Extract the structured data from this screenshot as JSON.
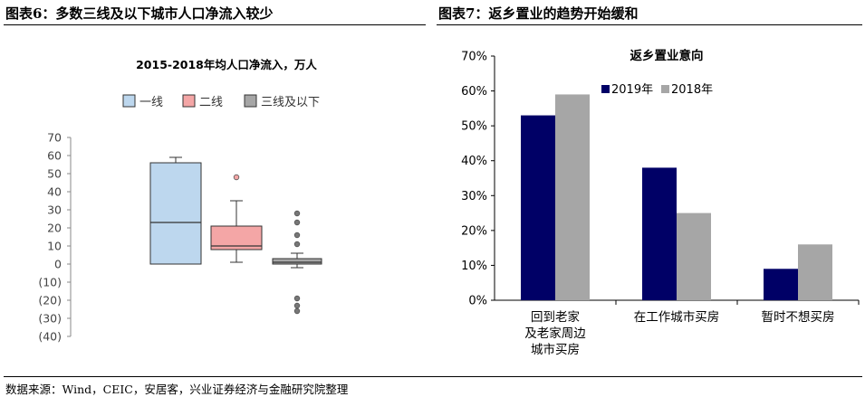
{
  "figure6": {
    "title": "图表6：多数三线及以下城市人口净流入较少"
  },
  "figure7": {
    "title": "图表7：返乡置业的趋势开始缓和"
  },
  "source": "数据来源：Wind，CEIC，安居客，兴业证券经济与金融研究院整理",
  "chart_data": [
    {
      "type": "box",
      "title": "2015-2018年均人口净流入，万人",
      "legend_position": "top",
      "categories": [
        "一线",
        "二线",
        "三线及以下"
      ],
      "series_colors": [
        "#bdd7ee",
        "#f4a6a6",
        "#a6a6a6"
      ],
      "yticks": [
        "70",
        "60",
        "50",
        "40",
        "30",
        "20",
        "10",
        "0",
        "(10)",
        "(20)",
        "(30)",
        "(40)"
      ],
      "ylim": [
        -40,
        70
      ],
      "boxes": [
        {
          "name": "一线",
          "min": 0,
          "q1": 0,
          "median": 23,
          "q3": 56,
          "max": 59,
          "outliers": []
        },
        {
          "name": "二线",
          "min": 1,
          "q1": 8,
          "median": 10,
          "q3": 21,
          "max": 35,
          "outliers": [
            48
          ]
        },
        {
          "name": "三线及以下",
          "min": -2,
          "q1": 0,
          "median": 1,
          "q3": 3,
          "max": 6,
          "outliers": [
            28,
            23,
            16,
            11,
            -19,
            -23,
            -26
          ]
        }
      ],
      "grid": false
    },
    {
      "type": "bar",
      "title": "返乡置业意向",
      "legend_position": "top-right",
      "categories": [
        "回到老家\n及老家周边\n城市买房",
        "在工作城市买房",
        "暂时不想买房"
      ],
      "yticks": [
        "70%",
        "60%",
        "50%",
        "40%",
        "30%",
        "20%",
        "10%",
        "0%"
      ],
      "ylim": [
        0,
        0.7
      ],
      "series": [
        {
          "name": "2019年",
          "color": "#000066",
          "values": [
            0.53,
            0.38,
            0.09
          ]
        },
        {
          "name": "2018年",
          "color": "#a6a6a6",
          "values": [
            0.59,
            0.25,
            0.16
          ]
        }
      ],
      "grid": false
    }
  ]
}
